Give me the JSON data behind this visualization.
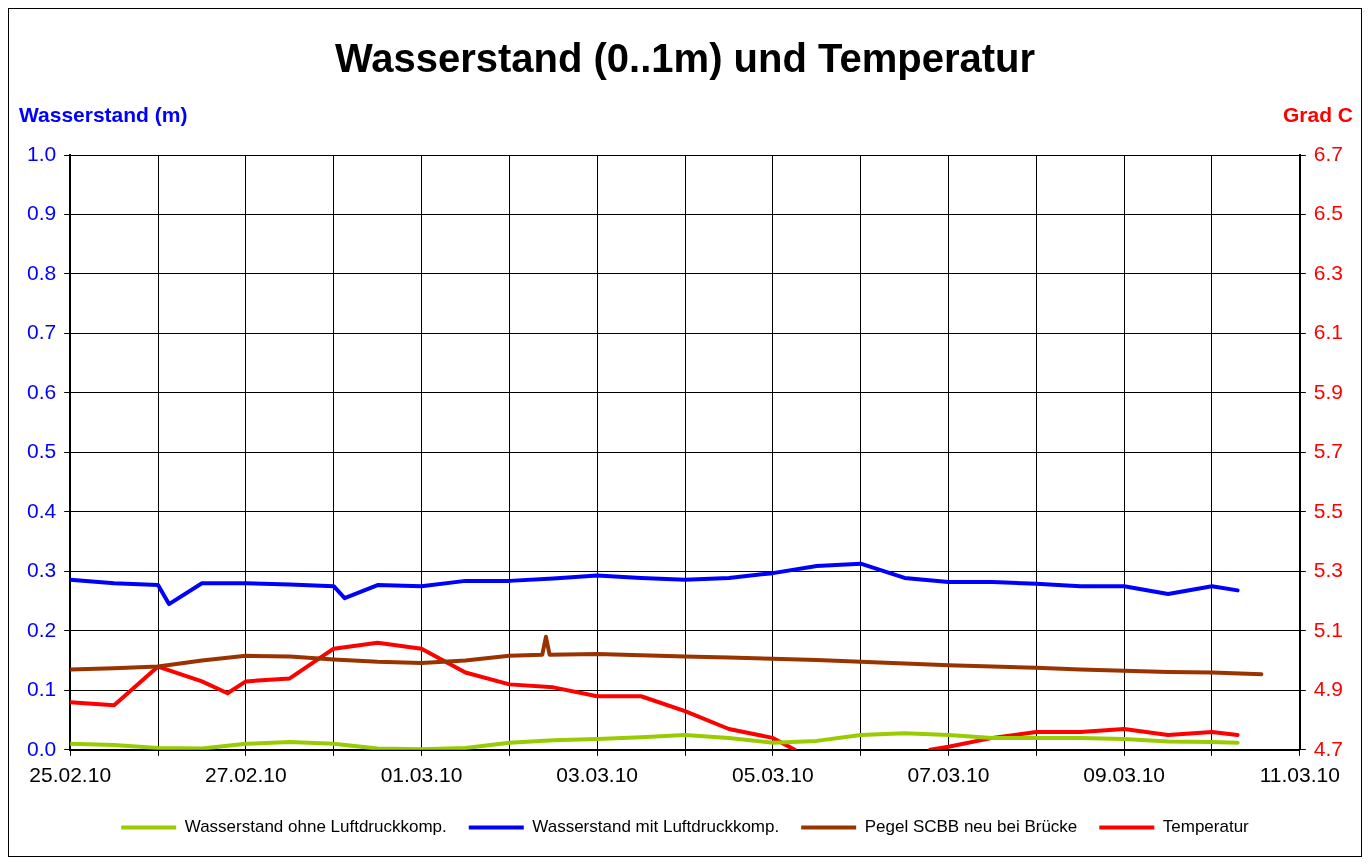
{
  "chart_data": {
    "type": "line",
    "title": "Wasserstand (0..1m) und Temperatur",
    "ylabel": "Wasserstand (m)",
    "y2label": "Grad C",
    "xlim": [
      "--02-25",
      "--03-11"
    ],
    "xticks": [
      {
        "value": "--02-25",
        "label": "25.02.10"
      },
      {
        "value": "--02-26",
        "label": null
      },
      {
        "value": "--02-27",
        "label": "27.02.10"
      },
      {
        "value": "--02-28",
        "label": null
      },
      {
        "value": "--03-01",
        "label": "01.03.10"
      },
      {
        "value": "--03-02",
        "label": null
      },
      {
        "value": "--03-03",
        "label": "03.03.10"
      },
      {
        "value": "--03-04",
        "label": null
      },
      {
        "value": "--03-05",
        "label": "05.03.10"
      },
      {
        "value": "--03-06",
        "label": null
      },
      {
        "value": "--03-07",
        "label": "07.03.10"
      },
      {
        "value": "--03-08",
        "label": null
      },
      {
        "value": "--03-09",
        "label": "09.03.10"
      },
      {
        "value": "--03-10",
        "label": null
      },
      {
        "value": "--03-11",
        "label": "11.03.10"
      }
    ],
    "ylim": [
      0,
      1
    ],
    "yticks": [
      {
        "value": 0,
        "label": "0.0"
      },
      {
        "value": 0.1,
        "label": "0.1"
      },
      {
        "value": 0.2,
        "label": "0.2"
      },
      {
        "value": 0.3,
        "label": "0.3"
      },
      {
        "value": 0.4,
        "label": "0.4"
      },
      {
        "value": 0.5,
        "label": "0.5"
      },
      {
        "value": 0.6,
        "label": "0.6"
      },
      {
        "value": 0.7,
        "label": "0.7"
      },
      {
        "value": 0.8,
        "label": "0.8"
      },
      {
        "value": 0.9,
        "label": "0.9"
      },
      {
        "value": 1,
        "label": "1.0"
      }
    ],
    "y2lim": [
      4.7,
      6.7
    ],
    "y2ticks": [
      4.7,
      4.9,
      5.1,
      5.3,
      5.5,
      5.7,
      5.9,
      6.1,
      6.3,
      6.5,
      6.7
    ],
    "grid": true,
    "legend": "bottom",
    "marker": "none",
    "line_style": "solid",
    "series": [
      {
        "name": "Wasserstand ohne Luftdruckkomp.",
        "color": "#99cc00",
        "x": [
          "--02-25T00:00",
          "--02-25T12:00",
          "--02-26T00:00",
          "--02-26T12:00",
          "--02-27T00:00",
          "--02-27T12:00",
          "--02-28T00:00",
          "--02-28T12:00",
          "--03-01T00:00",
          "--03-01T12:00",
          "--03-02T00:00",
          "--03-02T12:00",
          "--03-03T00:00",
          "--03-03T12:00",
          "--03-04T00:00",
          "--03-04T12:00",
          "--03-05T00:00",
          "--03-05T12:00",
          "--03-06T00:00",
          "--03-06T12:00",
          "--03-07T00:00",
          "--03-07T12:00",
          "--03-08T00:00",
          "--03-08T12:00",
          "--03-09T00:00",
          "--03-09T12:00",
          "--03-10T00:00",
          "--03-10T07:00"
        ],
        "values": [
          0.01,
          0.008,
          0.003,
          0.002,
          0.01,
          0.013,
          0.01,
          0.002,
          0.001,
          0.003,
          0.012,
          0.016,
          0.018,
          0.021,
          0.025,
          0.02,
          0.012,
          0.015,
          0.025,
          0.028,
          0.025,
          0.02,
          0.02,
          0.02,
          0.018,
          0.014,
          0.013,
          0.012
        ]
      },
      {
        "name": "Wasserstand mit Luftdruckkomp.",
        "color": "#0000ff",
        "x": [
          "--02-25T00:00",
          "--02-25T12:00",
          "--02-26T00:00",
          "--02-26T03:00",
          "--02-26T12:00",
          "--02-27T00:00",
          "--02-27T12:00",
          "--02-28T00:00",
          "--02-28T03:00",
          "--02-28T12:00",
          "--03-01T00:00",
          "--03-01T12:00",
          "--03-02T00:00",
          "--03-02T12:00",
          "--03-03T00:00",
          "--03-03T12:00",
          "--03-04T00:00",
          "--03-04T12:00",
          "--03-05T00:00",
          "--03-05T12:00",
          "--03-06T00:00",
          "--03-06T12:00",
          "--03-07T00:00",
          "--03-07T12:00",
          "--03-08T00:00",
          "--03-08T12:00",
          "--03-09T00:00",
          "--03-09T12:00",
          "--03-10T00:00",
          "--03-10T07:00"
        ],
        "values": [
          0.286,
          0.28,
          0.277,
          0.245,
          0.28,
          0.28,
          0.278,
          0.275,
          0.255,
          0.277,
          0.275,
          0.284,
          0.284,
          0.288,
          0.293,
          0.289,
          0.286,
          0.289,
          0.297,
          0.309,
          0.313,
          0.289,
          0.282,
          0.282,
          0.279,
          0.275,
          0.275,
          0.262,
          0.275,
          0.268
        ]
      },
      {
        "name": "Pegel SCBB neu bei Brücke",
        "color": "#993300",
        "x": [
          "--02-25T00:00",
          "--02-25T12:00",
          "--02-26T00:00",
          "--02-26T12:00",
          "--02-27T00:00",
          "--02-27T12:00",
          "--02-28T00:00",
          "--02-28T12:00",
          "--03-01T00:00",
          "--03-01T12:00",
          "--03-02T00:00",
          "--03-02T09:00",
          "--03-02T10:00",
          "--03-02T11:00",
          "--03-03T00:00",
          "--03-03T12:00",
          "--03-04T00:00",
          "--03-04T12:00",
          "--03-05T00:00",
          "--03-05T12:00",
          "--03-06T00:00",
          "--03-06T12:00",
          "--03-07T00:00",
          "--03-07T12:00",
          "--03-08T00:00",
          "--03-08T12:00",
          "--03-09T00:00",
          "--03-09T12:00",
          "--03-10T00:00",
          "--03-10T13:30"
        ],
        "values": [
          0.135,
          0.137,
          0.14,
          0.15,
          0.158,
          0.157,
          0.152,
          0.148,
          0.146,
          0.15,
          0.158,
          0.16,
          0.19,
          0.16,
          0.161,
          0.159,
          0.157,
          0.155,
          0.153,
          0.151,
          0.148,
          0.145,
          0.142,
          0.14,
          0.138,
          0.135,
          0.133,
          0.131,
          0.13,
          0.127
        ]
      },
      {
        "name": "Temperatur",
        "color": "#ff0000",
        "axis": "y2",
        "x": [
          "--02-25T00:00",
          "--02-25T12:00",
          "--02-26T00:00",
          "--02-26T12:00",
          "--02-26T19:00",
          "--02-27T00:00",
          "--02-27T12:00",
          "--02-28T00:00",
          "--02-28T12:00",
          "--03-01T00:00",
          "--03-01T12:00",
          "--03-02T00:00",
          "--03-02T12:00",
          "--03-03T00:00",
          "--03-03T12:00",
          "--03-04T00:00",
          "--03-04T12:00",
          "--03-05T00:00",
          "--03-05T06:00",
          "--03-06T00:00",
          "--03-06T19:00",
          "--03-07T00:00",
          "--03-07T12:00",
          "--03-08T00:00",
          "--03-08T12:00",
          "--03-09T00:00",
          "--03-09T12:00",
          "--03-10T00:00",
          "--03-10T07:00"
        ],
        "values": [
          4.86,
          4.85,
          4.98,
          4.93,
          4.89,
          4.93,
          4.94,
          5.04,
          5.06,
          5.04,
          4.96,
          4.92,
          4.91,
          4.88,
          4.88,
          4.83,
          4.77,
          4.74,
          4.7,
          null,
          4.7,
          4.71,
          4.74,
          4.76,
          4.76,
          4.77,
          4.75,
          4.76,
          4.75
        ]
      }
    ]
  }
}
